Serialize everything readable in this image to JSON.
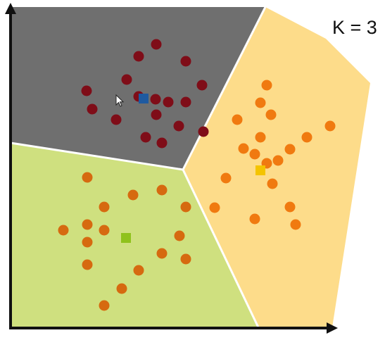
{
  "title": "K = 3",
  "colors": {
    "background": "#ffffff",
    "region_dark": "#6f6f6f",
    "region_green": "#cfe07f",
    "region_yellow": "#fddc8a",
    "boundary": "#ffffff",
    "axis": "#111111",
    "cursor": "#ffffff"
  },
  "clusters": [
    {
      "name": "dark-red",
      "region_color": "#6f6f6f",
      "point_color": "#7f0d18",
      "centroid_color": "#1f5aa0",
      "centroid": [
        204,
        140
      ],
      "points": [
        [
          222,
          63
        ],
        [
          197,
          80
        ],
        [
          264,
          87
        ],
        [
          180,
          113
        ],
        [
          123,
          129
        ],
        [
          287,
          121
        ],
        [
          197,
          137
        ],
        [
          221,
          141
        ],
        [
          239,
          145
        ],
        [
          264,
          145
        ],
        [
          131,
          155
        ],
        [
          165,
          170
        ],
        [
          222,
          163
        ],
        [
          254,
          179
        ],
        [
          207,
          195
        ],
        [
          230,
          203
        ],
        [
          289,
          187
        ]
      ]
    },
    {
      "name": "orange",
      "region_color": "#fddc8a",
      "point_color": "#f07a10",
      "centroid_color": "#f4c400",
      "centroid": [
        370,
        242
      ],
      "points": [
        [
          379,
          121
        ],
        [
          370,
          146
        ],
        [
          385,
          163
        ],
        [
          337,
          170
        ],
        [
          469,
          179
        ],
        [
          370,
          195
        ],
        [
          436,
          195
        ],
        [
          346,
          211
        ],
        [
          362,
          219
        ],
        [
          412,
          212
        ],
        [
          395,
          228
        ],
        [
          379,
          232
        ],
        [
          321,
          253
        ],
        [
          387,
          261
        ],
        [
          305,
          295
        ],
        [
          412,
          294
        ],
        [
          362,
          311
        ],
        [
          420,
          319
        ]
      ]
    },
    {
      "name": "green",
      "region_color": "#cfe07f",
      "point_color": "#d66a10",
      "centroid_color": "#8fc21c",
      "centroid": [
        179,
        338
      ],
      "points": [
        [
          124,
          252
        ],
        [
          230,
          270
        ],
        [
          189,
          277
        ],
        [
          148,
          294
        ],
        [
          264,
          294
        ],
        [
          90,
          327
        ],
        [
          124,
          319
        ],
        [
          148,
          327
        ],
        [
          255,
          335
        ],
        [
          124,
          344
        ],
        [
          230,
          360
        ],
        [
          264,
          368
        ],
        [
          124,
          376
        ],
        [
          197,
          384
        ],
        [
          173,
          410
        ],
        [
          148,
          434
        ]
      ]
    }
  ]
}
